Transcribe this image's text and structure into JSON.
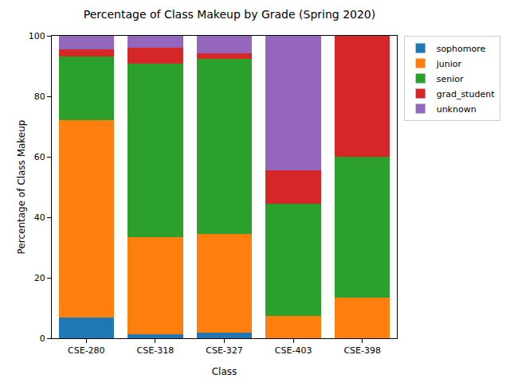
{
  "chart_data": {
    "type": "bar",
    "stacked": true,
    "title": "Percentage of Class Makeup by Grade (Spring 2020)",
    "x_label": "Class",
    "y_label": "Percentage of Class Makeup",
    "categories": [
      "CSE-280",
      "CSE-318",
      "CSE-327",
      "CSE-403",
      "CSE-398"
    ],
    "series": [
      {
        "name": "sophomore",
        "color": "#1f77b4",
        "values": [
          6.9,
          1.3,
          1.9,
          0,
          0
        ]
      },
      {
        "name": "junior",
        "color": "#ff7f0e",
        "values": [
          65.3,
          32.0,
          32.7,
          7.4,
          13.3
        ]
      },
      {
        "name": "senior",
        "color": "#2ca02c",
        "values": [
          20.9,
          57.4,
          57.7,
          37.0,
          46.7
        ]
      },
      {
        "name": "grad_student",
        "color": "#d62728",
        "values": [
          2.3,
          5.3,
          1.9,
          11.2,
          40.0
        ]
      },
      {
        "name": "unknown",
        "color": "#9467bd",
        "values": [
          4.6,
          4.0,
          5.8,
          44.4,
          0
        ]
      }
    ],
    "ylim": [
      0,
      100
    ],
    "yticks": [
      0,
      20,
      40,
      60,
      80,
      100
    ],
    "grid": false,
    "legend": "right"
  }
}
